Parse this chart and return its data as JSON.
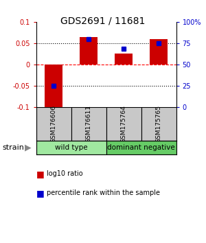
{
  "title": "GDS2691 / 11681",
  "samples": [
    "GSM176606",
    "GSM176611",
    "GSM175764",
    "GSM175765"
  ],
  "log10_ratio": [
    -0.1,
    0.065,
    0.025,
    0.06
  ],
  "percentile_rank": [
    25.0,
    80.0,
    68.0,
    75.0
  ],
  "groups": [
    {
      "label": "wild type",
      "color": "#90EE90",
      "samples": [
        0,
        1
      ]
    },
    {
      "label": "dominant negative",
      "color": "#66CC66",
      "samples": [
        2,
        3
      ]
    }
  ],
  "ylim_left": [
    -0.1,
    0.1
  ],
  "ylim_right": [
    0,
    100
  ],
  "yticks_left": [
    -0.1,
    -0.05,
    0,
    0.05,
    0.1
  ],
  "yticks_right": [
    0,
    25,
    50,
    75,
    100
  ],
  "ytick_labels_left": [
    "-0.1",
    "-0.05",
    "0",
    "0.05",
    "0.1"
  ],
  "ytick_labels_right": [
    "0",
    "25",
    "50",
    "75",
    "100%"
  ],
  "hlines": [
    -0.05,
    0,
    0.05
  ],
  "hline_styles": [
    "dotted",
    "dashed",
    "dotted"
  ],
  "hline_colors": [
    "black",
    "red",
    "black"
  ],
  "bar_color": "#CC0000",
  "blue_marker_color": "#0000CC",
  "bar_width": 0.5,
  "legend_red_label": "log10 ratio",
  "legend_blue_label": "percentile rank within the sample",
  "strain_label": "strain",
  "left_axis_color": "#CC0000",
  "right_axis_color": "#0000CC",
  "sample_box_color": "#C8C8C8",
  "group_colors": [
    "#A0E8A0",
    "#66CC66"
  ],
  "title_fontsize": 10,
  "tick_fontsize": 7,
  "sample_fontsize": 6.5,
  "group_fontsize": 7.5,
  "legend_fontsize": 7
}
